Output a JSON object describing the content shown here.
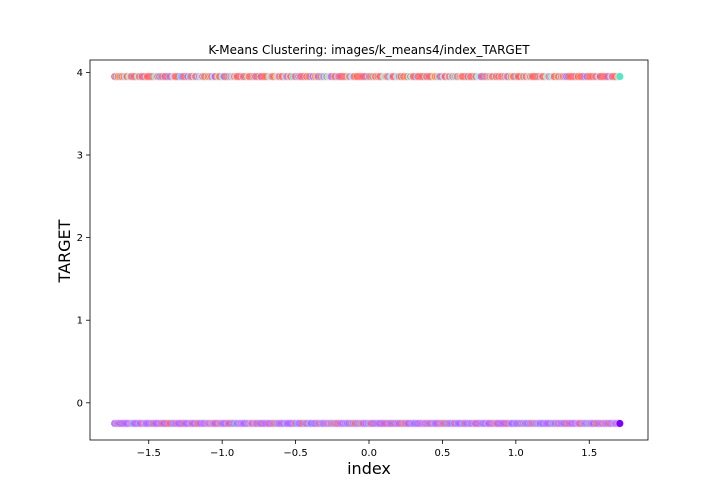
{
  "chart_data": {
    "type": "scatter",
    "title": "K-Means Clustering: images/k_means4/index_TARGET",
    "xlabel": "index",
    "ylabel": "TARGET",
    "xlim": [
      -1.9,
      1.9
    ],
    "ylim": [
      -0.45,
      4.15
    ],
    "x_ticks": [
      -1.5,
      -1.0,
      -0.5,
      0.0,
      0.5,
      1.0,
      1.5
    ],
    "x_tick_labels": [
      "−1.5",
      "−1.0",
      "−0.5",
      "0.0",
      "0.5",
      "1.0",
      "1.5"
    ],
    "y_ticks": [
      0,
      1,
      2,
      3,
      4
    ],
    "y_tick_labels": [
      "0",
      "1",
      "2",
      "3",
      "4"
    ],
    "grid": false,
    "point_rows": [
      {
        "y": 3.95,
        "x_range": [
          -1.73,
          1.71
        ],
        "dominant_color": "#ff0000",
        "colors": [
          "#ff0000",
          "#8000ff",
          "#3a6cf6",
          "#58e6c0",
          "#ff8c00",
          "#80b4ff"
        ]
      },
      {
        "y": -0.25,
        "x_range": [
          -1.73,
          1.71
        ],
        "dominant_color": "#8000ff",
        "colors": [
          "#8000ff",
          "#ff0000",
          "#3a6cf6",
          "#a040e0",
          "#c02080"
        ]
      }
    ]
  }
}
